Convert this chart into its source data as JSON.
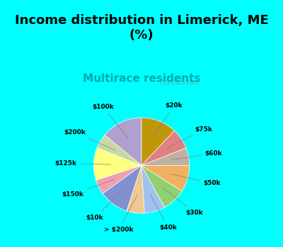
{
  "title": "Income distribution in Limerick, ME\n(%)",
  "subtitle": "Multirace residents",
  "title_color": "#000000",
  "subtitle_color": "#00aaaa",
  "background_top": "#00ffff",
  "background_chart": "#e8f5e8",
  "labels": [
    "$100k",
    "$200k",
    "$125k",
    "$150k",
    "$10k",
    "> $200k",
    "$40k",
    "$30k",
    "$50k",
    "$60k",
    "$75k",
    "$20k"
  ],
  "values": [
    14,
    5,
    11,
    5,
    10,
    6,
    7,
    8,
    9,
    6,
    7,
    12
  ],
  "colors": [
    "#b0a0d0",
    "#c8d8a0",
    "#ffff80",
    "#f0a0b0",
    "#8090d0",
    "#f0c890",
    "#a0c0f0",
    "#90d070",
    "#f0b060",
    "#c0b0a0",
    "#e08080",
    "#c0960a"
  ]
}
